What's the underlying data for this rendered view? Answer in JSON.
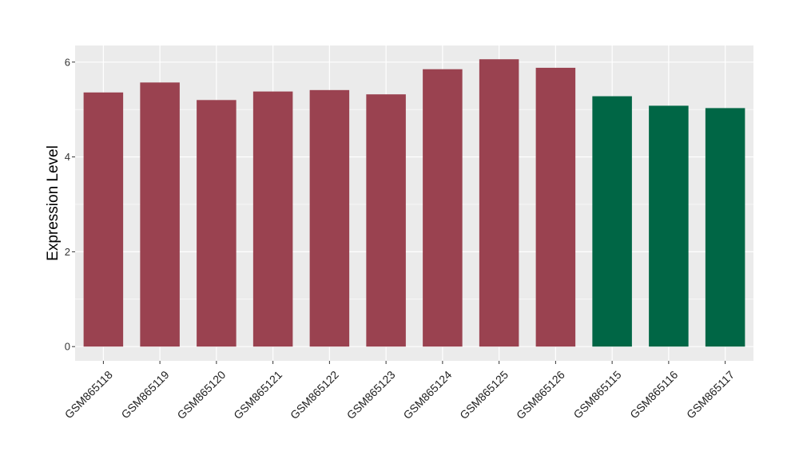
{
  "chart_data": {
    "type": "bar",
    "title": "",
    "xlabel": "",
    "ylabel": "Expression Level",
    "ylim": [
      -0.3,
      6.35
    ],
    "yticks": [
      0,
      2,
      4,
      6
    ],
    "grid": true,
    "legend": "none",
    "colors": {
      "group1": "#9a4250",
      "group2": "#006645",
      "panel_bg": "#ebebeb",
      "grid": "#ffffff"
    },
    "categories": [
      "GSM865118",
      "GSM865119",
      "GSM865120",
      "GSM865121",
      "GSM865122",
      "GSM865123",
      "GSM865124",
      "GSM865125",
      "GSM865126",
      "GSM865115",
      "GSM865116",
      "GSM865117"
    ],
    "values": [
      5.36,
      5.57,
      5.2,
      5.38,
      5.41,
      5.32,
      5.85,
      6.06,
      5.88,
      5.28,
      5.08,
      5.03
    ],
    "groups": [
      "group1",
      "group1",
      "group1",
      "group1",
      "group1",
      "group1",
      "group1",
      "group1",
      "group1",
      "group2",
      "group2",
      "group2"
    ]
  }
}
